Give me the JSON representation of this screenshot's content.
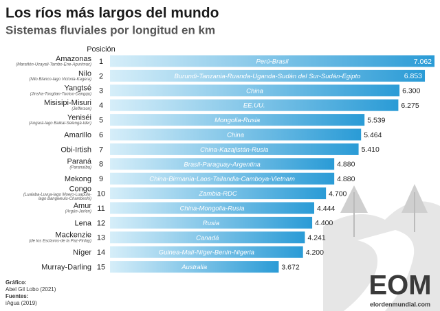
{
  "chart_data": {
    "type": "bar",
    "orientation": "horizontal",
    "title": "Los ríos más largos del mundo",
    "subtitle": "Sistemas fluviales por longitud en km",
    "position_header": "Posición",
    "categories": [
      "Amazonas",
      "Nilo",
      "Yangtsé",
      "Misisipi-Misuri",
      "Yeniséi",
      "Amarillo",
      "Obi-Irtish",
      "Paraná",
      "Mekong",
      "Congo",
      "Amur",
      "Lena",
      "Mackenzie",
      "Níger",
      "Murray-Darling"
    ],
    "notes": [
      [
        "(Marañón-Ucayali-Tambo-Ene-Apurímac)"
      ],
      [
        "(Nilo Blanco-lago Victoria-Kagera)"
      ],
      [
        "(Jinsha-Tongtian-Tuotuo-Dangqu)"
      ],
      [
        "(Jefferson)"
      ],
      [
        "(Angará-lago Baikal-Selengá-Ider)"
      ],
      null,
      null,
      [
        "(Paranaíba)"
      ],
      null,
      [
        "(Lualaba-Luvua-lago Moero-Luapula-",
        "lago Bangweulu-Chambeshi)"
      ],
      [
        "(Argún-Jerlen)"
      ],
      null,
      [
        "(de los Esclavos-de la Paz-Finlay)"
      ],
      null,
      null
    ],
    "positions": [
      1,
      2,
      3,
      4,
      5,
      6,
      7,
      8,
      9,
      10,
      11,
      12,
      13,
      14,
      15
    ],
    "countries": [
      "Perú-Brasil",
      "Burundi-Tanzania-Ruanda-Uganda-Sudán del Sur-Sudán-Egipto",
      "China",
      "EE.UU.",
      "Mongolia-Rusia",
      "China",
      "China-Kazajistán-Rusia",
      "Brasil-Paraguay-Argentina",
      "China-Birmania-Laos-Tailandia-Camboya-Vietnam",
      "Zambia-RDC",
      "China-Mongolia-Rusia",
      "Rusia",
      "Canadá",
      "Guinea-Malí-Níger-Benín-Nigeria",
      "Australia"
    ],
    "values": [
      7062,
      6853,
      6300,
      6275,
      5539,
      5464,
      5410,
      4880,
      4880,
      4700,
      4444,
      4400,
      4241,
      4200,
      3672
    ],
    "value_labels": [
      "7.062",
      "6.853",
      "6.300",
      "6.275",
      "5.539",
      "5.464",
      "5.410",
      "4.880",
      "4.880",
      "4.700",
      "4.444",
      "4.400",
      "4.241",
      "4.200",
      "3.672"
    ],
    "color": "#2a9bd6"
  },
  "footer": {
    "graphic_label": "Gráfico:",
    "graphic_author": "Abel Gil Lobo (2021)",
    "sources_label": "Fuentes:",
    "sources": "iAgua (2019)"
  },
  "logo": {
    "mark": "EOM",
    "site": "elordenmundial.com"
  }
}
